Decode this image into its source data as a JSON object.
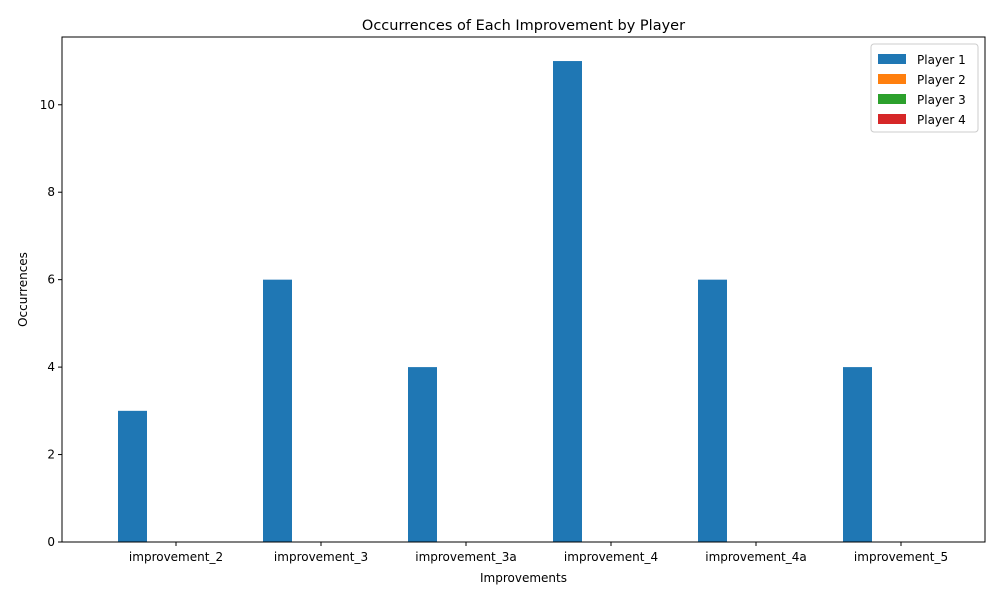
{
  "chart_data": {
    "type": "bar",
    "title": "Occurrences of Each Improvement by Player",
    "xlabel": "Improvements",
    "ylabel": "Occurrences",
    "categories": [
      "improvement_2",
      "improvement_3",
      "improvement_3a",
      "improvement_4",
      "improvement_4a",
      "improvement_5"
    ],
    "series": [
      {
        "name": "Player 1",
        "color": "#1f77b4",
        "values": [
          3,
          6,
          4,
          11,
          6,
          4
        ]
      },
      {
        "name": "Player 2",
        "color": "#ff7f0e",
        "values": [
          0,
          0,
          0,
          0,
          0,
          0
        ]
      },
      {
        "name": "Player 3",
        "color": "#2ca02c",
        "values": [
          0,
          0,
          0,
          0,
          0,
          0
        ]
      },
      {
        "name": "Player 4",
        "color": "#d62728",
        "values": [
          0,
          0,
          0,
          0,
          0,
          0
        ]
      }
    ],
    "yticks": [
      0,
      2,
      4,
      6,
      8,
      10
    ],
    "ylim": [
      0,
      11.55
    ],
    "grid": false,
    "legend_position": "top-right"
  }
}
